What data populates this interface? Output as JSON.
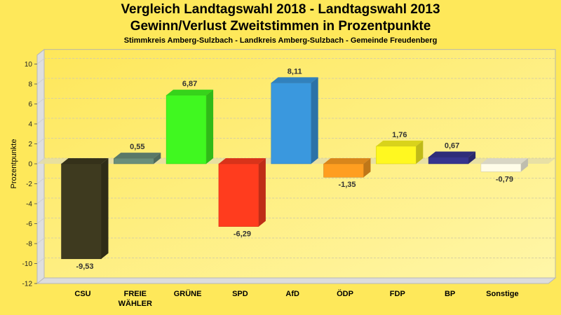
{
  "chart_data": {
    "type": "bar",
    "title": "Vergleich Landtagswahl 2018 - Landtagswahl 2013",
    "subtitle": "Gewinn/Verlust Zweitstimmen in Prozentpunkte",
    "subtitle2": "Stimmkreis Amberg-Sulzbach - Landkreis Amberg-Sulzbach - Gemeinde Freudenberg",
    "xlabel": "",
    "ylabel": "Prozentpunkte",
    "ylim": [
      -12,
      10
    ],
    "yticks": [
      10,
      8,
      6,
      4,
      2,
      0,
      -2,
      -4,
      -6,
      -8,
      -10,
      -12
    ],
    "grid": true,
    "categories": [
      "CSU",
      "FREIE WÄHLER",
      "GRÜNE",
      "SPD",
      "AfD",
      "ÖDP",
      "FDP",
      "BP",
      "Sonstige"
    ],
    "values": [
      -9.53,
      0.55,
      6.87,
      -6.29,
      8.11,
      -1.35,
      1.76,
      0.67,
      -0.79
    ],
    "value_labels": [
      "-9,53",
      "0,55",
      "6,87",
      "-6,29",
      "8,11",
      "-1,35",
      "1,76",
      "0,67",
      "-0,79"
    ],
    "colors": [
      "#3E3A1F",
      "#6A8E7A",
      "#40F820",
      "#FF3C1E",
      "#3A98DE",
      "#FF9E20",
      "#FFF820",
      "#36358E",
      "#FFFCE8"
    ]
  }
}
